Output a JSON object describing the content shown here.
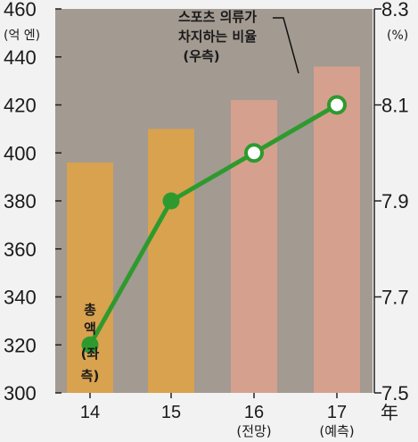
{
  "chart_data": {
    "type": "bar",
    "categories": [
      "14",
      "15",
      "16",
      "17"
    ],
    "category_sublabels": [
      "",
      "",
      "(전망)",
      "(예측)"
    ],
    "x_unit": "年",
    "left_axis": {
      "unit": "(억 엔)",
      "ylim": [
        300,
        460
      ],
      "ticks": [
        300,
        320,
        340,
        360,
        380,
        400,
        420,
        440,
        460
      ]
    },
    "right_axis": {
      "unit": "(%)",
      "ylim": [
        7.5,
        8.3
      ],
      "ticks": [
        7.5,
        7.7,
        7.9,
        8.1,
        8.3
      ]
    },
    "series": [
      {
        "name": "총액 (좌측)",
        "type": "bar",
        "axis": "left",
        "values": [
          396,
          410,
          422,
          436
        ],
        "colors": [
          "#d9a24e",
          "#d9a24e",
          "#d6a08f",
          "#d6a08f"
        ]
      },
      {
        "name": "스포츠 의류가 차지하는 비율 (우측)",
        "type": "line",
        "axis": "right",
        "values": [
          7.6,
          7.9,
          8.0,
          8.1
        ],
        "color": "#2e9a2e",
        "marker_styles": [
          "filled",
          "filled",
          "hollow",
          "hollow"
        ]
      }
    ],
    "annotation_lines": [
      "스포츠 의류가",
      "차지하는 비율",
      "(우측)"
    ],
    "bar_label_chars": [
      "총",
      "액",
      "(좌",
      "측)"
    ],
    "grid": false
  }
}
